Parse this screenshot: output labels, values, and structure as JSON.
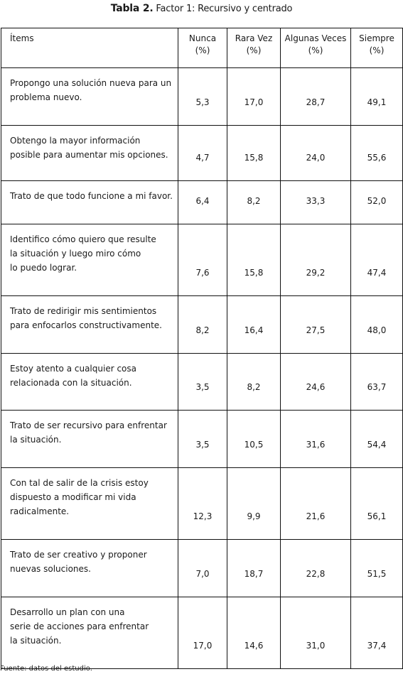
{
  "caption": {
    "label": "Tabla 2.",
    "title": "Factor 1: Recursivo y centrado"
  },
  "table": {
    "headers": [
      {
        "line1": "Ítems",
        "line2": ""
      },
      {
        "line1": "Nunca",
        "line2": "(%)"
      },
      {
        "line1": "Rara Vez",
        "line2": "(%)"
      },
      {
        "line1": "Algunas Veces",
        "line2": "(%)"
      },
      {
        "line1": "Siempre",
        "line2": "(%)"
      }
    ],
    "rows": [
      {
        "lines": [
          "Propongo una solución nueva para un",
          "problema nuevo."
        ],
        "values": [
          "5,3",
          "17,0",
          "28,7",
          "49,1"
        ]
      },
      {
        "lines": [
          "Obtengo la mayor información",
          "posible para aumentar mis opciones."
        ],
        "values": [
          "4,7",
          "15,8",
          "24,0",
          "55,6"
        ]
      },
      {
        "lines": [
          "Trato de que todo funcione a mi favor."
        ],
        "values": [
          "6,4",
          "8,2",
          "33,3",
          "52,0"
        ]
      },
      {
        "lines": [
          "Identifico cómo quiero que resulte",
          "la situación y luego miro cómo",
          "lo puedo lograr."
        ],
        "values": [
          "7,6",
          "15,8",
          "29,2",
          "47,4"
        ]
      },
      {
        "lines": [
          "Trato de redirigir mis sentimientos",
          "para enfocarlos constructivamente."
        ],
        "values": [
          "8,2",
          "16,4",
          "27,5",
          "48,0"
        ]
      },
      {
        "lines": [
          "Estoy atento a cualquier cosa",
          "relacionada con la situación."
        ],
        "values": [
          "3,5",
          "8,2",
          "24,6",
          "63,7"
        ]
      },
      {
        "lines": [
          "Trato de ser recursivo para enfrentar",
          "la situación."
        ],
        "values": [
          "3,5",
          "10,5",
          "31,6",
          "54,4"
        ]
      },
      {
        "lines": [
          "Con tal de salir de la crisis estoy",
          "dispuesto a modificar mi vida",
          "radicalmente."
        ],
        "values": [
          "12,3",
          "9,9",
          "21,6",
          "56,1"
        ]
      },
      {
        "lines": [
          "Trato de ser creativo y proponer",
          "nuevas soluciones."
        ],
        "values": [
          "7,0",
          "18,7",
          "22,8",
          "51,5"
        ]
      },
      {
        "lines": [
          "Desarrollo un plan con una",
          "serie de acciones para enfrentar",
          "la situación."
        ],
        "values": [
          "17,0",
          "14,6",
          "31,0",
          "37,4"
        ]
      }
    ]
  },
  "footer": "Fuente: datos del estudio."
}
